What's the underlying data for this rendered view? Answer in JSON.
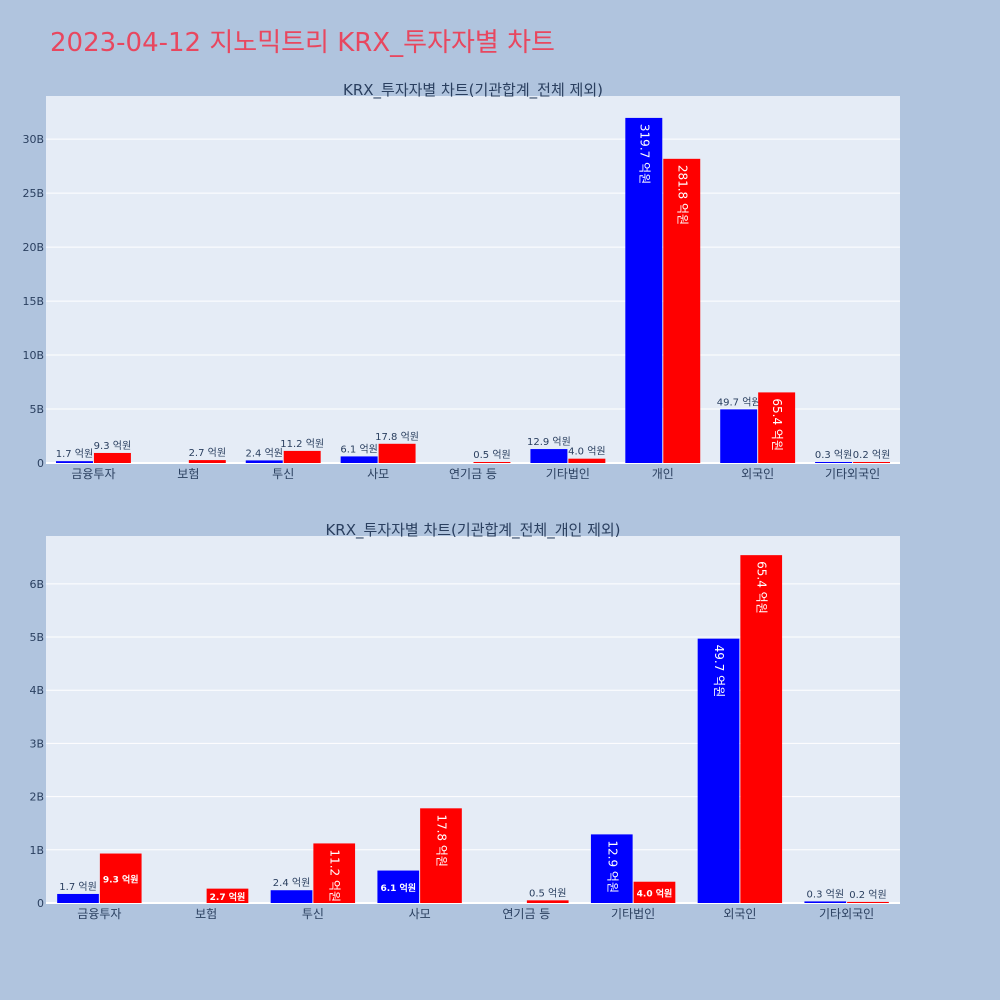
{
  "page_title": "2023-04-12 지노믹트리 KRX_투자자별 차트",
  "colors": {
    "buy": "#0000ff",
    "sell": "#ff0000",
    "plot_bg": "#e5ecf6",
    "page_bg": "#b0c4de",
    "title": "#e8475f"
  },
  "chart_data": [
    {
      "type": "bar",
      "title": "KRX_투자자별 차트(기관합계_전체 제외)",
      "categories": [
        "금융투자",
        "보험",
        "투신",
        "사모",
        "연기금 등",
        "기타법인",
        "개인",
        "외국인",
        "기타외국인"
      ],
      "series": [
        {
          "values": [
            170000000,
            0,
            240000000,
            610000000,
            0,
            1290000000,
            31970000000,
            4970000000,
            30000000
          ],
          "labels": [
            "1.7 억원",
            "",
            "2.4 억원",
            "6.1 억원",
            "",
            "12.9 억원",
            "319.7 억원",
            "49.7 억원",
            "0.3 억원"
          ]
        },
        {
          "values": [
            930000000,
            270000000,
            1120000000,
            1780000000,
            50000000,
            400000000,
            28180000000,
            6540000000,
            20000000
          ],
          "labels": [
            "9.3 억원",
            "2.7 억원",
            "11.2 억원",
            "17.8 억원",
            "0.5 억원",
            "4.0 억원",
            "281.8 억원",
            "65.4 억원",
            "0.2 억원"
          ]
        }
      ],
      "y_ticks": [
        "0",
        "5B",
        "10B",
        "15B",
        "20B",
        "25B",
        "30B"
      ],
      "ylim": [
        0,
        34000000000
      ],
      "grid": true
    },
    {
      "type": "bar",
      "title": "KRX_투자자별 차트(기관합계_전체_개인 제외)",
      "categories": [
        "금융투자",
        "보험",
        "투신",
        "사모",
        "연기금 등",
        "기타법인",
        "외국인",
        "기타외국인"
      ],
      "series": [
        {
          "values": [
            170000000,
            0,
            240000000,
            610000000,
            0,
            1290000000,
            4970000000,
            30000000
          ],
          "labels": [
            "1.7 억원",
            "",
            "2.4 억원",
            "6.1 억원",
            "",
            "12.9 억원",
            "49.7 억원",
            "0.3 억원"
          ]
        },
        {
          "values": [
            930000000,
            270000000,
            1120000000,
            1780000000,
            50000000,
            400000000,
            6540000000,
            20000000
          ],
          "labels": [
            "9.3 억원",
            "2.7 억원",
            "11.2 억원",
            "17.8 억원",
            "0.5 억원",
            "4.0 억원",
            "65.4 억원",
            "0.2 억원"
          ]
        }
      ],
      "y_ticks": [
        "0",
        "1B",
        "2B",
        "3B",
        "4B",
        "5B",
        "6B"
      ],
      "ylim": [
        0,
        6900000000
      ],
      "grid": true
    }
  ]
}
